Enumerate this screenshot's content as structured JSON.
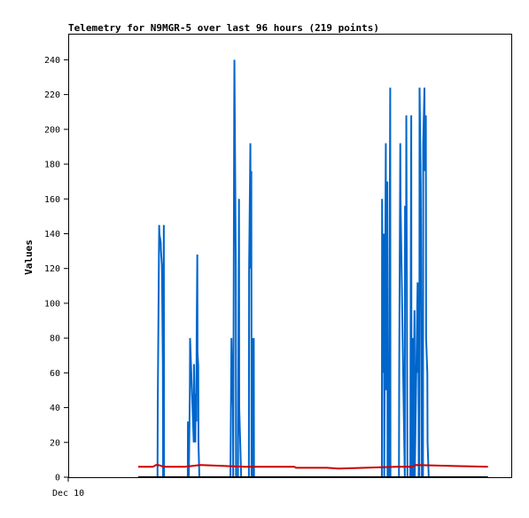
{
  "chart_data": {
    "type": "line",
    "title": "Telemetry for N9MGR-5 over last 96 hours (219 points)",
    "xlabel": "",
    "ylabel": "Values",
    "ylim": [
      0,
      255
    ],
    "yticks": [
      0,
      20,
      40,
      60,
      80,
      100,
      120,
      140,
      160,
      180,
      200,
      220,
      240
    ],
    "xlim": [
      -18,
      96
    ],
    "x_tick_labels": [
      {
        "x": -18,
        "label": "Dec 10"
      }
    ],
    "grid": false,
    "legend": "none",
    "series": [
      {
        "color": "#0066cc",
        "x": [
          0,
          4.97,
          5.03,
          5.4,
          5.46,
          5.8,
          5.86,
          6.1,
          6.16,
          6.35,
          6.41,
          6.6,
          6.66,
          6.9,
          6.96,
          7.1,
          7.16,
          7.4,
          7.46,
          12.76,
          12.8,
          12.96,
          13.02,
          13.29,
          13.35,
          14.3,
          14.36,
          14.71,
          14.77,
          14.98,
          15.04,
          15.21,
          15.27,
          15.45,
          15.51,
          15.74,
          15.8,
          16.4,
          16.46,
          16.71,
          16.77,
          17.04,
          17.1,
          17.28,
          17.34,
          18.0,
          23.74,
          24.0,
          24.06,
          24.39,
          24.45,
          24.7,
          24.76,
          25.12,
          25.18,
          25.67,
          25.73,
          25.94,
          26.0,
          26.5,
          28.48,
          28.54,
          28.87,
          28.93,
          29.11,
          29.17,
          29.46,
          29.52,
          29.74,
          29.8,
          30.08,
          30.14,
          30.6,
          30.66,
          31.0,
          31.06,
          31.2,
          80
        ],
        "y": [
          0,
          0,
          40,
          145,
          140,
          135,
          130,
          122,
          112,
          64,
          0,
          145,
          0,
          0,
          0,
          0,
          0,
          0,
          0,
          0,
          32,
          24,
          0,
          48,
          80,
          20,
          65,
          20,
          48,
          32,
          80,
          128,
          72,
          64,
          20,
          0,
          0,
          0,
          0,
          0,
          0,
          0,
          0,
          0,
          0,
          0,
          0,
          80,
          72,
          40,
          0,
          208,
          240,
          120,
          0,
          0,
          40,
          160,
          40,
          0,
          0,
          120,
          192,
          120,
          176,
          0,
          80,
          0,
          80,
          0,
          0,
          0,
          0,
          0,
          0,
          0,
          0,
          0
        ]
      },
      {
        "color": "#0066cc",
        "x": [
          62.3,
          62.7,
          62.76,
          63.0,
          63.06,
          63.24,
          63.3,
          63.72,
          63.78,
          64.1,
          64.16,
          64.42,
          64.48,
          64.85,
          64.91,
          65.4,
          65.46,
          65.7,
          65.76,
          66.1,
          66.16,
          67.1,
          67.16,
          67.44,
          67.5,
          68.6,
          68.66,
          68.93,
          68.99,
          69.28,
          69.34,
          70.02,
          70.06,
          70.26,
          70.32,
          70.68,
          70.74,
          71.1,
          71.16,
          71.9,
          71.96,
          72.12,
          72.18,
          72.34,
          72.4,
          72.7,
          72.76,
          73.0,
          73.06,
          73.28,
          73.34,
          73.66,
          73.72,
          74.02,
          74.08,
          74.4,
          74.46,
          74.76,
          74.82,
          75.1,
          75.16,
          75.4,
          75.46,
          75.84,
          75.9,
          76.08,
          76.14,
          76.32,
          76.38,
          76.6,
          76.66,
          76.94,
          77.0,
          77.22,
          77.28,
          77.56,
          77.62,
          77.9,
          77.96,
          78.3
        ],
        "y": [
          0,
          0,
          160,
          60,
          100,
          140,
          0,
          192,
          50,
          170,
          0,
          0,
          0,
          224,
          0,
          0,
          0,
          0,
          0,
          0,
          0,
          0,
          60,
          192,
          160,
          0,
          156,
          120,
          208,
          0,
          0,
          0,
          48,
          208,
          0,
          80,
          0,
          96,
          0,
          112,
          60,
          96,
          0,
          0,
          224,
          168,
          144,
          0,
          0,
          0,
          192,
          224,
          176,
          208,
          80,
          60,
          20,
          0,
          0,
          0,
          0,
          0,
          0,
          0,
          0,
          0,
          0,
          0,
          0,
          0,
          0,
          0,
          0,
          0,
          0,
          0,
          0,
          0,
          0,
          0
        ]
      },
      {
        "color": "#cc0000",
        "x": [
          0,
          3.8,
          4.6,
          5.2,
          6.6,
          12.0,
          16.0,
          27.4,
          40.2,
          40.6,
          48.6,
          51.4,
          51.9,
          66.4,
          67.7,
          70.4,
          71.4,
          90
        ],
        "y": [
          6,
          6,
          7,
          7,
          6,
          6,
          7,
          6,
          6,
          5.4,
          5.4,
          5,
          5,
          6,
          6,
          6,
          7,
          6
        ]
      },
      {
        "color": "#000000",
        "x": [
          0,
          90
        ],
        "y": [
          0,
          0
        ]
      }
    ]
  }
}
